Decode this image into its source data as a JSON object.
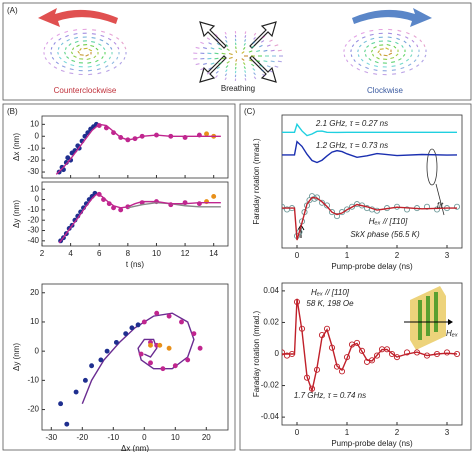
{
  "panels": {
    "a": {
      "label": "(A)",
      "captions": [
        "Counterclockwise",
        "Breathing",
        "Clockwise"
      ]
    },
    "b": {
      "label": "(B)"
    },
    "c": {
      "label": "(C)"
    }
  },
  "chart_data": [
    {
      "type": "line",
      "ylabel": "Δx (nm)",
      "xlim": [
        2,
        15
      ],
      "xticks": [
        2,
        4,
        6,
        8,
        10,
        12,
        14
      ],
      "xtick_labels": false,
      "ylim": [
        -35,
        17
      ],
      "yticks": [
        10,
        0,
        -10,
        -20,
        -30
      ],
      "series": [
        {
          "mode": "markers",
          "color": "#1f2f8f",
          "x": [
            3.2,
            3.4,
            3.5,
            3.7,
            3.8,
            4.0,
            4.1,
            4.3,
            4.5,
            4.6,
            4.8,
            5.0,
            5.2,
            5.4,
            5.6,
            5.8
          ],
          "values": [
            -30,
            -26,
            -28,
            -22,
            -18,
            -20,
            -14,
            -12,
            -8,
            -10,
            -4,
            0,
            3,
            6,
            8,
            10
          ]
        },
        {
          "mode": "markers",
          "color": "#c0268f",
          "x": [
            6.0,
            6.5,
            7.0,
            7.5,
            8.0,
            8.5,
            9.0,
            10.0,
            11.0,
            12.0,
            13.0
          ],
          "values": [
            9,
            7,
            3,
            -1,
            -3,
            -2,
            0,
            1,
            0,
            -1,
            1
          ]
        },
        {
          "mode": "markers",
          "color": "#e8901a",
          "x": [
            13.5,
            14.0
          ],
          "values": [
            2,
            0
          ]
        },
        {
          "mode": "line",
          "color": "#c0268f",
          "x": [
            3,
            3.5,
            4,
            4.5,
            5,
            5.5,
            6,
            6.5,
            7,
            7.5,
            8,
            8.5,
            9,
            10,
            11,
            12,
            13,
            14.5
          ],
          "values": [
            -32,
            -26,
            -19,
            -11,
            -3,
            5,
            10,
            9,
            4,
            -1,
            -3,
            -2,
            0,
            1,
            0,
            0,
            0,
            0
          ]
        }
      ]
    },
    {
      "type": "line",
      "ylabel": "Δy (nm)",
      "xlabel": "t (ns)",
      "xlim": [
        2,
        15
      ],
      "xticks": [
        2,
        4,
        6,
        8,
        10,
        12,
        14
      ],
      "ylim": [
        -45,
        17
      ],
      "yticks": [
        10,
        0,
        -10,
        -20,
        -30,
        -40
      ],
      "series": [
        {
          "mode": "markers",
          "color": "#1f2f8f",
          "x": [
            3.3,
            3.5,
            3.7,
            3.9,
            4.1,
            4.3,
            4.5,
            4.7,
            4.9,
            5.1,
            5.3,
            5.5,
            5.7
          ],
          "values": [
            -40,
            -37,
            -33,
            -28,
            -25,
            -20,
            -16,
            -12,
            -8,
            -4,
            0,
            3,
            6
          ]
        },
        {
          "mode": "markers",
          "color": "#c0268f",
          "x": [
            6.0,
            6.3,
            6.7,
            7.0,
            7.5,
            8,
            9,
            10,
            11,
            12,
            13
          ],
          "values": [
            5,
            0,
            -4,
            -8,
            -10,
            -7,
            -3,
            -2,
            -5,
            -3,
            -4
          ]
        },
        {
          "mode": "markers",
          "color": "#e8901a",
          "x": [
            13.5,
            14
          ],
          "values": [
            -2,
            3
          ]
        },
        {
          "mode": "line",
          "color": "#888888",
          "x": [
            8,
            9,
            10,
            11,
            12,
            13,
            14.5
          ],
          "values": [
            -8,
            -5,
            -3,
            -4,
            -6,
            -7,
            -7
          ]
        },
        {
          "mode": "line",
          "color": "#c0268f",
          "x": [
            3.2,
            3.6,
            4,
            4.5,
            5,
            5.5,
            5.8,
            6.2,
            6.6,
            7,
            7.5,
            8,
            8.5,
            9,
            10,
            11,
            12,
            13,
            14.5
          ],
          "values": [
            -42,
            -35,
            -27,
            -18,
            -8,
            1,
            5,
            3,
            -2,
            -6,
            -8,
            -7,
            -4,
            -2,
            -2,
            -4,
            -4,
            -3,
            -3
          ]
        }
      ]
    },
    {
      "type": "line",
      "xlabel": "Δx (nm)",
      "ylabel": "Δy (nm)",
      "xlim": [
        -33,
        27
      ],
      "xticks": [
        -30,
        -20,
        -10,
        0,
        10,
        20
      ],
      "ylim": [
        -27,
        23
      ],
      "yticks": [
        20,
        10,
        0,
        -10,
        -20
      ],
      "series": [
        {
          "mode": "line",
          "color": "#6a2c91",
          "x": [
            -20,
            -17,
            -13,
            -8,
            -3,
            3,
            9,
            14,
            16,
            14,
            9,
            3,
            -1,
            -2,
            0,
            3,
            4,
            2,
            0
          ],
          "values": [
            -18,
            -10,
            -3,
            3,
            8,
            12,
            13,
            10,
            4,
            -2,
            -6,
            -6,
            -3,
            1,
            4,
            4,
            1,
            -2,
            -1
          ]
        },
        {
          "mode": "markers",
          "color": "#1f2f8f",
          "x": [
            -25,
            -27,
            -22,
            -19,
            -17,
            -14,
            -12,
            -9,
            -6,
            -4,
            -2
          ],
          "values": [
            -25,
            -18,
            -14,
            -10,
            -5,
            -3,
            0,
            3,
            6,
            8,
            9
          ]
        },
        {
          "mode": "markers",
          "color": "#c0268f",
          "x": [
            0,
            4,
            8,
            12,
            16,
            18,
            14,
            10,
            6,
            2,
            -1,
            2,
            4
          ],
          "values": [
            10,
            13,
            12,
            10,
            6,
            1,
            -3,
            -5,
            -6,
            -4,
            -1,
            3,
            2
          ]
        },
        {
          "mode": "markers",
          "color": "#e8901a",
          "x": [
            2,
            5,
            8
          ],
          "values": [
            2,
            2,
            1
          ]
        }
      ]
    },
    {
      "type": "line",
      "xlabel": "Pump-probe delay (ns)",
      "ylabel": "Faraday rotation (mrad.)",
      "xlim": [
        -0.3,
        3.3
      ],
      "xticks": [
        0,
        1,
        2,
        3
      ],
      "ylim": [
        0,
        10
      ],
      "annotations": [
        "2.1 GHz, τ = 0.27 ns",
        "1.2 GHz, τ = 0.73 ns",
        "fit",
        "Hₑₓ // [1̄10]",
        "SkX phase (56.5 K)"
      ],
      "series": [
        {
          "mode": "line",
          "color": "#20d0e0",
          "x": [
            -0.3,
            -0.05,
            0,
            0.1,
            0.2,
            0.3,
            0.4,
            0.5,
            0.6,
            0.8,
            1,
            1.5,
            2,
            2.5,
            3,
            3.2
          ],
          "values": [
            8.7,
            8.7,
            9.3,
            8.8,
            8.45,
            8.57,
            8.77,
            8.79,
            8.7,
            8.69,
            8.7,
            8.7,
            8.7,
            8.7,
            8.7,
            8.7
          ]
        },
        {
          "mode": "line",
          "color": "#1a2fb0",
          "x": [
            -0.3,
            -0.05,
            0,
            0.1,
            0.2,
            0.3,
            0.4,
            0.5,
            0.6,
            0.7,
            0.8,
            0.9,
            1,
            1.2,
            1.4,
            1.6,
            2,
            2.5,
            3,
            3.2
          ],
          "values": [
            7,
            7,
            8,
            7.64,
            7.05,
            6.58,
            6.43,
            6.6,
            6.92,
            7.21,
            7.32,
            7.25,
            7.08,
            6.82,
            6.93,
            7.1,
            6.95,
            7.03,
            6.99,
            7
          ]
        },
        {
          "mode": "markers",
          "hollow": true,
          "color": "#6f9a9a",
          "x": [
            -0.3,
            -0.2,
            -0.1,
            0,
            0.05,
            0.1,
            0.15,
            0.2,
            0.25,
            0.3,
            0.35,
            0.4,
            0.5,
            0.6,
            0.7,
            0.8,
            0.9,
            1,
            1.1,
            1.2,
            1.3,
            1.4,
            1.5,
            1.6,
            1.8,
            2,
            2.2,
            2.4,
            2.6,
            2.8,
            3,
            3.2
          ],
          "values": [
            3.1,
            2.9,
            3.0,
            0.9,
            1.2,
            2.0,
            2.7,
            3.2,
            3.6,
            3.9,
            3.7,
            3.8,
            3.4,
            3.2,
            2.7,
            2.4,
            2.7,
            2.9,
            3.1,
            3.3,
            3.2,
            3.0,
            2.9,
            2.8,
            3.0,
            3.1,
            2.9,
            3.0,
            3.1,
            2.9,
            3.0,
            3.1
          ]
        },
        {
          "mode": "line",
          "color": "#c0202a",
          "x": [
            -0.3,
            -0.05,
            0,
            0.1,
            0.2,
            0.3,
            0.4,
            0.5,
            0.6,
            0.7,
            0.8,
            0.9,
            1,
            1.2,
            1.4,
            1.6,
            2,
            2.5,
            3,
            3.2
          ],
          "values": [
            3,
            3,
            0.6,
            1.9,
            3.3,
            3.8,
            3.75,
            3.47,
            3.12,
            2.69,
            2.52,
            2.63,
            2.88,
            3.27,
            3.1,
            2.85,
            3.07,
            2.95,
            3,
            3
          ]
        }
      ]
    },
    {
      "type": "line",
      "xlabel": "Pump-probe delay (ns)",
      "ylabel": "Faraday rotation (mrad.)",
      "xlim": [
        -0.3,
        3.3
      ],
      "xticks": [
        0,
        1,
        2,
        3
      ],
      "ylim": [
        -0.045,
        0.045
      ],
      "yticks": [
        0.04,
        0.02,
        0,
        -0.02,
        -0.04
      ],
      "annotations": [
        "Hₑₓ // [110]",
        "58 K, 198 Oe",
        "1.7 GHz, τ = 0.74 ns",
        "Hₑₓ"
      ],
      "series": [
        {
          "mode": "markers",
          "hollow": true,
          "color": "#c0202a",
          "x": [
            -0.3,
            -0.2,
            -0.1,
            0,
            0.1,
            0.2,
            0.3,
            0.4,
            0.5,
            0.6,
            0.7,
            0.8,
            0.9,
            1.0,
            1.1,
            1.2,
            1.3,
            1.4,
            1.5,
            1.6,
            1.7,
            1.8,
            1.9,
            2.0,
            2.2,
            2.4,
            2.6,
            2.8,
            3.0,
            3.2
          ],
          "values": [
            0.001,
            -0.001,
            0,
            0.033,
            0.016,
            -0.015,
            -0.022,
            -0.01,
            0.012,
            0.016,
            0.004,
            -0.008,
            -0.011,
            -0.002,
            0.006,
            0.007,
            0.002,
            -0.005,
            -0.004,
            -0.001,
            0.003,
            0.003,
            0,
            -0.002,
            0.001,
            0.001,
            -0.001,
            0,
            0.001,
            0
          ]
        },
        {
          "mode": "line",
          "color": "#c0202a",
          "x": [
            -0.3,
            -0.05,
            0,
            0.1,
            0.2,
            0.3,
            0.4,
            0.5,
            0.6,
            0.7,
            0.8,
            0.9,
            1.0,
            1.1,
            1.2,
            1.3,
            1.4,
            1.5,
            1.6,
            1.7,
            1.8,
            1.9,
            2.0,
            2.2,
            2.4,
            2.6,
            2.8,
            3.0,
            3.2
          ],
          "values": [
            0,
            0,
            0.035,
            0.0147,
            -0.0143,
            -0.0233,
            -0.0088,
            0.0105,
            0.0154,
            0.005,
            -0.0076,
            -0.0102,
            -0.0028,
            0.0055,
            0.0067,
            0.0016,
            -0.0039,
            -0.0044,
            -0.0008,
            0.0028,
            0.0029,
            0.0003,
            -0.0019,
            0,
            0.0012,
            -0.001,
            0,
            0.0005,
            0
          ]
        }
      ]
    }
  ]
}
